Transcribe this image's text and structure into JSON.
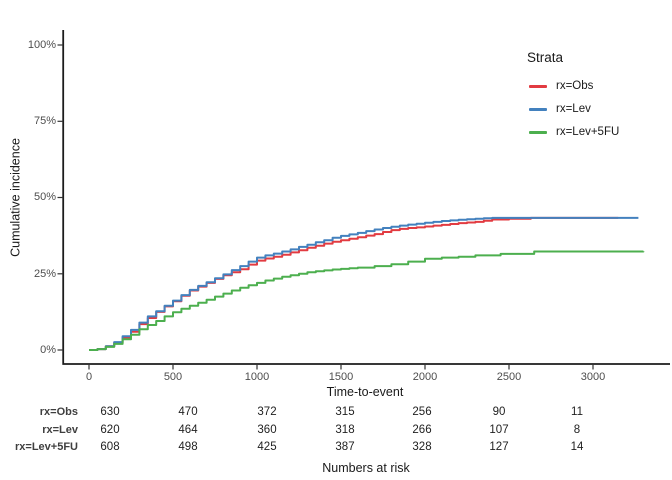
{
  "chart_data": {
    "type": "line",
    "subtype": "step-function-cumulative-incidence",
    "title": "",
    "xlabel": "Time-to-event",
    "ylabel": "Cumulative incidence",
    "x_ticks": [
      0,
      500,
      1000,
      1500,
      2000,
      2500,
      3000
    ],
    "x_tick_labels": [
      "0",
      "500",
      "1000",
      "1500",
      "2000",
      "2500",
      "3000"
    ],
    "y_tick_percents": [
      0,
      25,
      50,
      75,
      100
    ],
    "y_tick_labels": [
      "0%",
      "25%",
      "50%",
      "75%",
      "100%"
    ],
    "xlim": [
      0,
      3330
    ],
    "ylim_percent": [
      0,
      100
    ],
    "grid": false,
    "legend": {
      "title": "Strata",
      "position": "right-top"
    },
    "series": [
      {
        "name": "rx=Obs",
        "color": "#e23b41",
        "points": [
          [
            0,
            0
          ],
          [
            50,
            0.3
          ],
          [
            100,
            1.2
          ],
          [
            150,
            2.4
          ],
          [
            200,
            4.0
          ],
          [
            250,
            6.0
          ],
          [
            300,
            8.5
          ],
          [
            350,
            10.5
          ],
          [
            400,
            12.5
          ],
          [
            450,
            14.3
          ],
          [
            500,
            16.0
          ],
          [
            550,
            17.8
          ],
          [
            600,
            19.5
          ],
          [
            650,
            20.8
          ],
          [
            700,
            22.0
          ],
          [
            750,
            23.3
          ],
          [
            800,
            24.5
          ],
          [
            850,
            25.5
          ],
          [
            900,
            26.5
          ],
          [
            950,
            28.0
          ],
          [
            1000,
            29.3
          ],
          [
            1050,
            30.0
          ],
          [
            1100,
            30.6
          ],
          [
            1150,
            31.2
          ],
          [
            1200,
            32.0
          ],
          [
            1250,
            32.7
          ],
          [
            1300,
            33.5
          ],
          [
            1350,
            34.2
          ],
          [
            1400,
            34.9
          ],
          [
            1450,
            35.5
          ],
          [
            1500,
            36.0
          ],
          [
            1550,
            36.5
          ],
          [
            1600,
            37.0
          ],
          [
            1650,
            37.5
          ],
          [
            1700,
            38.0
          ],
          [
            1750,
            38.7
          ],
          [
            1800,
            39.3
          ],
          [
            1850,
            39.7
          ],
          [
            1900,
            40.0
          ],
          [
            1950,
            40.2
          ],
          [
            2000,
            40.5
          ],
          [
            2050,
            40.8
          ],
          [
            2100,
            41.0
          ],
          [
            2150,
            41.3
          ],
          [
            2200,
            41.6
          ],
          [
            2250,
            41.8
          ],
          [
            2300,
            42.0
          ],
          [
            2350,
            42.4
          ],
          [
            2400,
            42.8
          ],
          [
            2500,
            43.0
          ],
          [
            2630,
            43.3
          ],
          [
            3150,
            43.3
          ]
        ]
      },
      {
        "name": "rx=Lev",
        "color": "#4381be",
        "points": [
          [
            0,
            0
          ],
          [
            50,
            0.3
          ],
          [
            100,
            1.2
          ],
          [
            150,
            2.6
          ],
          [
            200,
            4.5
          ],
          [
            250,
            6.6
          ],
          [
            300,
            9.0
          ],
          [
            350,
            11.0
          ],
          [
            400,
            12.7
          ],
          [
            450,
            14.5
          ],
          [
            500,
            16.2
          ],
          [
            550,
            18.0
          ],
          [
            600,
            19.7
          ],
          [
            650,
            21.0
          ],
          [
            700,
            22.2
          ],
          [
            750,
            23.5
          ],
          [
            800,
            24.8
          ],
          [
            850,
            26.2
          ],
          [
            900,
            27.5
          ],
          [
            950,
            29.0
          ],
          [
            1000,
            30.3
          ],
          [
            1050,
            31.0
          ],
          [
            1100,
            31.6
          ],
          [
            1150,
            32.3
          ],
          [
            1200,
            33.0
          ],
          [
            1250,
            33.8
          ],
          [
            1300,
            34.5
          ],
          [
            1350,
            35.3
          ],
          [
            1400,
            36.0
          ],
          [
            1450,
            36.8
          ],
          [
            1500,
            37.4
          ],
          [
            1550,
            37.9
          ],
          [
            1600,
            38.4
          ],
          [
            1650,
            39.0
          ],
          [
            1700,
            39.5
          ],
          [
            1750,
            40.0
          ],
          [
            1800,
            40.4
          ],
          [
            1850,
            40.8
          ],
          [
            1900,
            41.1
          ],
          [
            1950,
            41.4
          ],
          [
            2000,
            41.7
          ],
          [
            2050,
            42.0
          ],
          [
            2100,
            42.3
          ],
          [
            2150,
            42.5
          ],
          [
            2200,
            42.7
          ],
          [
            2250,
            42.9
          ],
          [
            2300,
            43.0
          ],
          [
            2350,
            43.2
          ],
          [
            2400,
            43.3
          ],
          [
            3270,
            43.3
          ]
        ]
      },
      {
        "name": "rx=Lev+5FU",
        "color": "#4caf4e",
        "points": [
          [
            0,
            0
          ],
          [
            50,
            0.3
          ],
          [
            100,
            1.0
          ],
          [
            150,
            2.0
          ],
          [
            200,
            3.5
          ],
          [
            250,
            5.0
          ],
          [
            300,
            6.8
          ],
          [
            350,
            8.2
          ],
          [
            400,
            9.5
          ],
          [
            450,
            11.0
          ],
          [
            500,
            12.4
          ],
          [
            550,
            13.5
          ],
          [
            600,
            14.5
          ],
          [
            650,
            15.5
          ],
          [
            700,
            16.5
          ],
          [
            750,
            17.5
          ],
          [
            800,
            18.5
          ],
          [
            850,
            19.5
          ],
          [
            900,
            20.4
          ],
          [
            950,
            21.2
          ],
          [
            1000,
            22.0
          ],
          [
            1050,
            22.8
          ],
          [
            1100,
            23.4
          ],
          [
            1150,
            24.0
          ],
          [
            1200,
            24.5
          ],
          [
            1250,
            25.0
          ],
          [
            1300,
            25.5
          ],
          [
            1350,
            25.8
          ],
          [
            1400,
            26.1
          ],
          [
            1450,
            26.4
          ],
          [
            1500,
            26.6
          ],
          [
            1550,
            26.8
          ],
          [
            1600,
            27.0
          ],
          [
            1700,
            27.5
          ],
          [
            1800,
            28.1
          ],
          [
            1900,
            29.0
          ],
          [
            2000,
            29.9
          ],
          [
            2100,
            30.3
          ],
          [
            2200,
            30.6
          ],
          [
            2300,
            31.0
          ],
          [
            2450,
            31.5
          ],
          [
            2650,
            32.3
          ],
          [
            3300,
            32.4
          ]
        ]
      }
    ],
    "numbers_at_risk": {
      "caption": "Numbers at risk",
      "times": [
        0,
        500,
        1000,
        1500,
        2000,
        2500,
        3000
      ],
      "rows": [
        {
          "label": "rx=Obs",
          "counts": [
            630,
            470,
            372,
            315,
            256,
            90,
            11
          ]
        },
        {
          "label": "rx=Lev",
          "counts": [
            620,
            464,
            360,
            318,
            266,
            107,
            8
          ]
        },
        {
          "label": "rx=Lev+5FU",
          "counts": [
            608,
            498,
            425,
            387,
            328,
            127,
            14
          ]
        }
      ]
    }
  }
}
